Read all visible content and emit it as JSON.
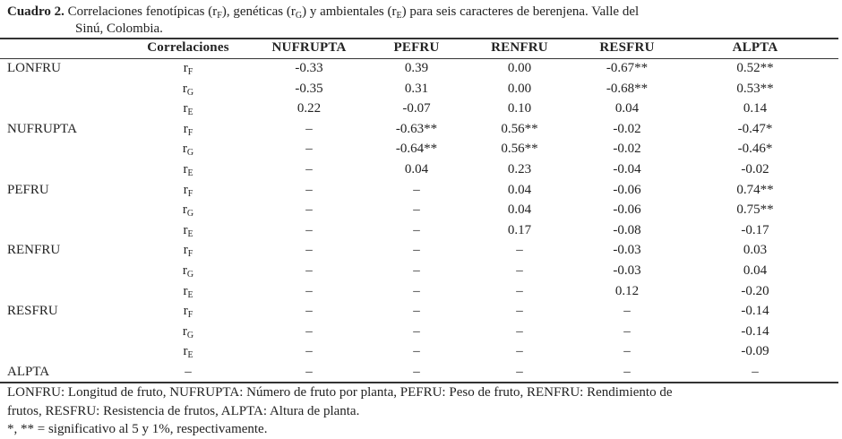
{
  "caption": {
    "label": "Cuadro 2.",
    "line1_a": " Correlaciones fenotípicas (r",
    "sub_f": "F",
    "line1_b": "), genéticas (r",
    "sub_g": "G",
    "line1_c": ") y ambientales (r",
    "sub_e": "E",
    "line1_d": ") para seis caracteres de berenjena.  Valle del",
    "line2": "Sinú, Colombia."
  },
  "headers": [
    "",
    "Correlaciones",
    "NUFRUPTA",
    "PEFRU",
    "RENFRU",
    "RESFRU",
    "ALPTA"
  ],
  "rows": [
    {
      "trait": "LONFRU",
      "r": "r",
      "sub": "F",
      "values": [
        "-0.33",
        "0.39",
        "0.00",
        "-0.67**",
        "0.52**"
      ]
    },
    {
      "trait": "",
      "r": "r",
      "sub": "G",
      "values": [
        "-0.35",
        "0.31",
        "0.00",
        "-0.68**",
        "0.53**"
      ]
    },
    {
      "trait": "",
      "r": "r",
      "sub": "E",
      "values": [
        "0.22",
        "-0.07",
        "0.10",
        "0.04",
        "0.14"
      ]
    },
    {
      "trait": "NUFRUPTA",
      "r": "r",
      "sub": "F",
      "values": [
        "–",
        "-0.63**",
        "0.56**",
        "-0.02",
        "-0.47*"
      ]
    },
    {
      "trait": "",
      "r": "r",
      "sub": "G",
      "values": [
        "–",
        "-0.64**",
        "0.56**",
        "-0.02",
        "-0.46*"
      ]
    },
    {
      "trait": "",
      "r": "r",
      "sub": "E",
      "values": [
        "–",
        "0.04",
        "0.23",
        "-0.04",
        "-0.02"
      ]
    },
    {
      "trait": "PEFRU",
      "r": "r",
      "sub": "F",
      "values": [
        "–",
        "–",
        "0.04",
        "-0.06",
        "0.74**"
      ]
    },
    {
      "trait": "",
      "r": "r",
      "sub": "G",
      "values": [
        "–",
        "–",
        "0.04",
        "-0.06",
        "0.75**"
      ]
    },
    {
      "trait": "",
      "r": "r",
      "sub": "E",
      "values": [
        "–",
        "–",
        "0.17",
        "-0.08",
        "-0.17"
      ]
    },
    {
      "trait": "RENFRU",
      "r": "r",
      "sub": "F",
      "values": [
        "–",
        "–",
        "–",
        "-0.03",
        "0.03"
      ]
    },
    {
      "trait": "",
      "r": "r",
      "sub": "G",
      "values": [
        "–",
        "–",
        "–",
        "-0.03",
        "0.04"
      ]
    },
    {
      "trait": "",
      "r": "r",
      "sub": "E",
      "values": [
        "–",
        "–",
        "–",
        "0.12",
        "-0.20"
      ]
    },
    {
      "trait": "RESFRU",
      "r": "r",
      "sub": "F",
      "values": [
        "–",
        "–",
        "–",
        "–",
        "-0.14"
      ]
    },
    {
      "trait": "",
      "r": "r",
      "sub": "G",
      "values": [
        "–",
        "–",
        "–",
        "–",
        "-0.14"
      ]
    },
    {
      "trait": "",
      "r": "r",
      "sub": "E",
      "values": [
        "–",
        "–",
        "–",
        "–",
        "-0.09"
      ]
    },
    {
      "trait": "ALPTA",
      "r": "–",
      "sub": "",
      "values": [
        "–",
        "–",
        "–",
        "–",
        "–"
      ]
    }
  ],
  "footer": {
    "line1": "LONFRU: Longitud de fruto, NUFRUPTA: Número de fruto por planta, PEFRU: Peso de fruto, RENFRU: Rendimiento de",
    "line2": "frutos, RESFRU: Resistencia de frutos, ALPTA: Altura de planta.",
    "line3": "*, ** = significativo al 5 y 1%, respectivamente."
  }
}
